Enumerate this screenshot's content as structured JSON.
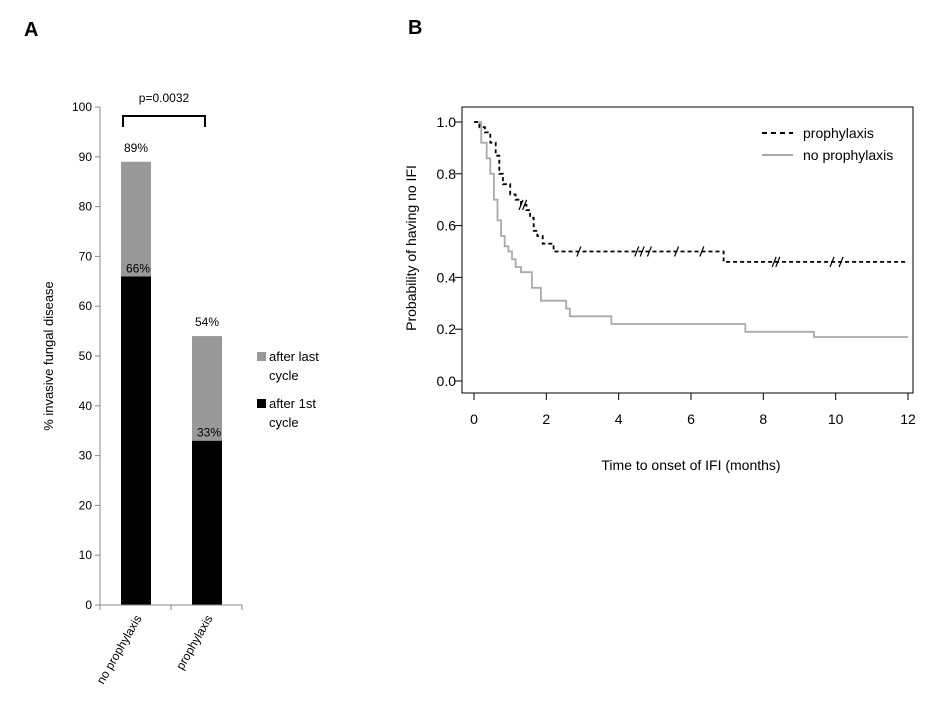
{
  "panels": {
    "a_letter": "A",
    "b_letter": "B"
  },
  "colors": {
    "first_cycle": "#000000",
    "last_cycle": "#999999",
    "prophylaxis_line": "#000000",
    "no_prophylaxis_line": "#aaaaaa"
  },
  "chart_data": [
    {
      "type": "bar",
      "stacked": true,
      "categories": [
        "no prophylaxis",
        "prophylaxis"
      ],
      "series": [
        {
          "name": "after 1st cycle",
          "values": [
            66,
            33
          ],
          "labels": [
            "66%",
            "33%"
          ]
        },
        {
          "name": "after last cycle",
          "values": [
            23,
            21
          ]
        }
      ],
      "totals": [
        89,
        54
      ],
      "total_labels": [
        "89%",
        "54%"
      ],
      "legend_lines": {
        "after last cycle": [
          "after last",
          "cycle"
        ],
        "after 1st cycle": [
          "after 1st",
          "cycle"
        ]
      },
      "annotation": "p=0.0032",
      "ylabel": "% invasive fungal disease",
      "ylim": [
        0,
        100
      ],
      "yticks": [
        0,
        10,
        20,
        30,
        40,
        50,
        60,
        70,
        80,
        90,
        100
      ],
      "legend_position": "right"
    },
    {
      "type": "line",
      "step": true,
      "xlabel": "Time to onset of IFI (months)",
      "ylabel": "Probability of having no IFI",
      "xlim": [
        0,
        12
      ],
      "ylim": [
        0,
        1
      ],
      "xticks": [
        0,
        2,
        4,
        6,
        8,
        10,
        12
      ],
      "yticks": [
        "0.0",
        "0.2",
        "0.4",
        "0.6",
        "0.8",
        "1.0"
      ],
      "legend_position": "top-right",
      "series": [
        {
          "name": "prophylaxis",
          "style": "dashed",
          "x": [
            0,
            0.15,
            0.3,
            0.45,
            0.6,
            0.7,
            0.8,
            1.0,
            1.15,
            1.3,
            1.45,
            1.55,
            1.65,
            1.75,
            1.9,
            2.2,
            6.9,
            12
          ],
          "y": [
            1.0,
            0.98,
            0.96,
            0.92,
            0.87,
            0.8,
            0.76,
            0.72,
            0.7,
            0.68,
            0.66,
            0.63,
            0.58,
            0.56,
            0.53,
            0.5,
            0.46,
            0.46
          ],
          "censored_x": [
            1.3,
            1.4,
            2.9,
            4.5,
            4.65,
            4.85,
            5.6,
            6.3,
            8.3,
            8.4,
            9.9,
            10.15
          ]
        },
        {
          "name": "no prophylaxis",
          "style": "solid",
          "x": [
            0,
            0.2,
            0.35,
            0.45,
            0.55,
            0.65,
            0.75,
            0.85,
            0.95,
            1.05,
            1.15,
            1.3,
            1.6,
            1.85,
            2.55,
            2.65,
            3.8,
            7.5,
            9.4,
            12
          ],
          "y": [
            1.0,
            0.92,
            0.86,
            0.8,
            0.7,
            0.62,
            0.56,
            0.52,
            0.5,
            0.47,
            0.44,
            0.42,
            0.36,
            0.31,
            0.28,
            0.25,
            0.22,
            0.19,
            0.17,
            0.17
          ],
          "censored_x": []
        }
      ]
    }
  ]
}
